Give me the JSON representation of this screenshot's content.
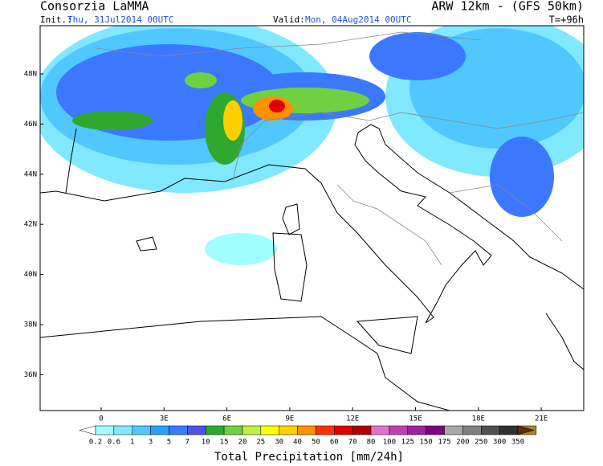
{
  "header": {
    "title": "Consorzia LaMMA",
    "model": "ARW 12km - (GFS 50km)",
    "init_label": "Init.:",
    "init_time": "Thu, 31Jul2014 00UTC",
    "valid_label": "Valid:",
    "valid_time": "Mon, 04Aug2014 00UTC",
    "lead": "T=+96h"
  },
  "map": {
    "lat_labels": [
      "48N",
      "46N",
      "44N",
      "42N",
      "40N",
      "38N",
      "36N"
    ],
    "lon_labels": [
      "0",
      "3E",
      "6E",
      "9E",
      "12E",
      "15E",
      "18E",
      "21E"
    ]
  },
  "colorbar": {
    "title": "Total Precipitation [mm/24h]",
    "labels": [
      "0.2",
      "0.6",
      "1",
      "3",
      "5",
      "7",
      "10",
      "15",
      "20",
      "25",
      "30",
      "40",
      "50",
      "60",
      "70",
      "80",
      "100",
      "125",
      "150",
      "175",
      "200",
      "250",
      "300",
      "350"
    ],
    "colors": [
      "#ffffff",
      "#a0fffe",
      "#80e8ff",
      "#50c8ff",
      "#2aa0ff",
      "#3c78ff",
      "#5050f0",
      "#30a830",
      "#70d040",
      "#c0f040",
      "#ffff00",
      "#ffd000",
      "#ff9000",
      "#ff3000",
      "#e00000",
      "#b00000",
      "#e070d0",
      "#c040b0",
      "#a020a0",
      "#800080",
      "#a8a8a8",
      "#808080",
      "#505050",
      "#303030",
      "#b08030",
      "#603000"
    ]
  }
}
